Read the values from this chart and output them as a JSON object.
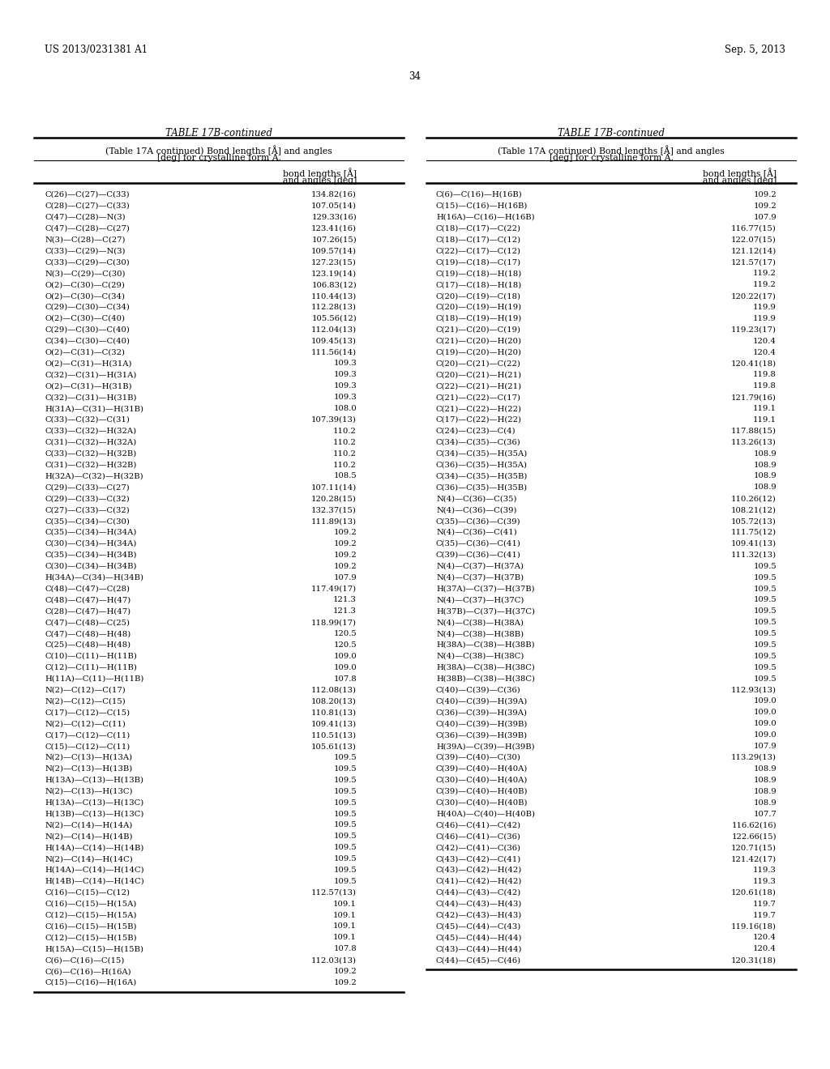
{
  "patent_number": "US 2013/0231381 A1",
  "date": "Sep. 5, 2013",
  "page_number": "34",
  "table_title": "TABLE 17B-continued",
  "left_data": [
    [
      "C(26)—C(27)—C(33)",
      "134.82(16)"
    ],
    [
      "C(28)—C(27)—C(33)",
      "107.05(14)"
    ],
    [
      "C(47)—C(28)—N(3)",
      "129.33(16)"
    ],
    [
      "C(47)—C(28)—C(27)",
      "123.41(16)"
    ],
    [
      "N(3)—C(28)—C(27)",
      "107.26(15)"
    ],
    [
      "C(33)—C(29)—N(3)",
      "109.57(14)"
    ],
    [
      "C(33)—C(29)—C(30)",
      "127.23(15)"
    ],
    [
      "N(3)—C(29)—C(30)",
      "123.19(14)"
    ],
    [
      "O(2)—C(30)—C(29)",
      "106.83(12)"
    ],
    [
      "O(2)—C(30)—C(34)",
      "110.44(13)"
    ],
    [
      "C(29)—C(30)—C(34)",
      "112.28(13)"
    ],
    [
      "O(2)—C(30)—C(40)",
      "105.56(12)"
    ],
    [
      "C(29)—C(30)—C(40)",
      "112.04(13)"
    ],
    [
      "C(34)—C(30)—C(40)",
      "109.45(13)"
    ],
    [
      "O(2)—C(31)—C(32)",
      "111.56(14)"
    ],
    [
      "O(2)—C(31)—H(31A)",
      "109.3"
    ],
    [
      "C(32)—C(31)—H(31A)",
      "109.3"
    ],
    [
      "O(2)—C(31)—H(31B)",
      "109.3"
    ],
    [
      "C(32)—C(31)—H(31B)",
      "109.3"
    ],
    [
      "H(31A)—C(31)—H(31B)",
      "108.0"
    ],
    [
      "C(33)—C(32)—C(31)",
      "107.39(13)"
    ],
    [
      "C(33)—C(32)—H(32A)",
      "110.2"
    ],
    [
      "C(31)—C(32)—H(32A)",
      "110.2"
    ],
    [
      "C(33)—C(32)—H(32B)",
      "110.2"
    ],
    [
      "C(31)—C(32)—H(32B)",
      "110.2"
    ],
    [
      "H(32A)—C(32)—H(32B)",
      "108.5"
    ],
    [
      "C(29)—C(33)—C(27)",
      "107.11(14)"
    ],
    [
      "C(29)—C(33)—C(32)",
      "120.28(15)"
    ],
    [
      "C(27)—C(33)—C(32)",
      "132.37(15)"
    ],
    [
      "C(35)—C(34)—C(30)",
      "111.89(13)"
    ],
    [
      "C(35)—C(34)—H(34A)",
      "109.2"
    ],
    [
      "C(30)—C(34)—H(34A)",
      "109.2"
    ],
    [
      "C(35)—C(34)—H(34B)",
      "109.2"
    ],
    [
      "C(30)—C(34)—H(34B)",
      "109.2"
    ],
    [
      "H(34A)—C(34)—H(34B)",
      "107.9"
    ],
    [
      "C(48)—C(47)—C(28)",
      "117.49(17)"
    ],
    [
      "C(48)—C(47)—H(47)",
      "121.3"
    ],
    [
      "C(28)—C(47)—H(47)",
      "121.3"
    ],
    [
      "C(47)—C(48)—C(25)",
      "118.99(17)"
    ],
    [
      "C(47)—C(48)—H(48)",
      "120.5"
    ],
    [
      "C(25)—C(48)—H(48)",
      "120.5"
    ],
    [
      "C(10)—C(11)—H(11B)",
      "109.0"
    ],
    [
      "C(12)—C(11)—H(11B)",
      "109.0"
    ],
    [
      "H(11A)—C(11)—H(11B)",
      "107.8"
    ],
    [
      "N(2)—C(12)—C(17)",
      "112.08(13)"
    ],
    [
      "N(2)—C(12)—C(15)",
      "108.20(13)"
    ],
    [
      "C(17)—C(12)—C(15)",
      "110.81(13)"
    ],
    [
      "N(2)—C(12)—C(11)",
      "109.41(13)"
    ],
    [
      "C(17)—C(12)—C(11)",
      "110.51(13)"
    ],
    [
      "C(15)—C(12)—C(11)",
      "105.61(13)"
    ],
    [
      "N(2)—C(13)—H(13A)",
      "109.5"
    ],
    [
      "N(2)—C(13)—H(13B)",
      "109.5"
    ],
    [
      "H(13A)—C(13)—H(13B)",
      "109.5"
    ],
    [
      "N(2)—C(13)—H(13C)",
      "109.5"
    ],
    [
      "H(13A)—C(13)—H(13C)",
      "109.5"
    ],
    [
      "H(13B)—C(13)—H(13C)",
      "109.5"
    ],
    [
      "N(2)—C(14)—H(14A)",
      "109.5"
    ],
    [
      "N(2)—C(14)—H(14B)",
      "109.5"
    ],
    [
      "H(14A)—C(14)—H(14B)",
      "109.5"
    ],
    [
      "N(2)—C(14)—H(14C)",
      "109.5"
    ],
    [
      "H(14A)—C(14)—H(14C)",
      "109.5"
    ],
    [
      "H(14B)—C(14)—H(14C)",
      "109.5"
    ],
    [
      "C(16)—C(15)—C(12)",
      "112.57(13)"
    ],
    [
      "C(16)—C(15)—H(15A)",
      "109.1"
    ],
    [
      "C(12)—C(15)—H(15A)",
      "109.1"
    ],
    [
      "C(16)—C(15)—H(15B)",
      "109.1"
    ],
    [
      "C(12)—C(15)—H(15B)",
      "109.1"
    ],
    [
      "H(15A)—C(15)—H(15B)",
      "107.8"
    ],
    [
      "C(6)—C(16)—C(15)",
      "112.03(13)"
    ],
    [
      "C(6)—C(16)—H(16A)",
      "109.2"
    ],
    [
      "C(15)—C(16)—H(16A)",
      "109.2"
    ]
  ],
  "right_data": [
    [
      "C(6)—C(16)—H(16B)",
      "109.2"
    ],
    [
      "C(15)—C(16)—H(16B)",
      "109.2"
    ],
    [
      "H(16A)—C(16)—H(16B)",
      "107.9"
    ],
    [
      "C(18)—C(17)—C(22)",
      "116.77(15)"
    ],
    [
      "C(18)—C(17)—C(12)",
      "122.07(15)"
    ],
    [
      "C(22)—C(17)—C(12)",
      "121.12(14)"
    ],
    [
      "C(19)—C(18)—C(17)",
      "121.57(17)"
    ],
    [
      "C(19)—C(18)—H(18)",
      "119.2"
    ],
    [
      "C(17)—C(18)—H(18)",
      "119.2"
    ],
    [
      "C(20)—C(19)—C(18)",
      "120.22(17)"
    ],
    [
      "C(20)—C(19)—H(19)",
      "119.9"
    ],
    [
      "C(18)—C(19)—H(19)",
      "119.9"
    ],
    [
      "C(21)—C(20)—C(19)",
      "119.23(17)"
    ],
    [
      "C(21)—C(20)—H(20)",
      "120.4"
    ],
    [
      "C(19)—C(20)—H(20)",
      "120.4"
    ],
    [
      "C(20)—C(21)—C(22)",
      "120.41(18)"
    ],
    [
      "C(20)—C(21)—H(21)",
      "119.8"
    ],
    [
      "C(22)—C(21)—H(21)",
      "119.8"
    ],
    [
      "C(21)—C(22)—C(17)",
      "121.79(16)"
    ],
    [
      "C(21)—C(22)—H(22)",
      "119.1"
    ],
    [
      "C(17)—C(22)—H(22)",
      "119.1"
    ],
    [
      "C(24)—C(23)—C(4)",
      "117.88(15)"
    ],
    [
      "C(34)—C(35)—C(36)",
      "113.26(13)"
    ],
    [
      "C(34)—C(35)—H(35A)",
      "108.9"
    ],
    [
      "C(36)—C(35)—H(35A)",
      "108.9"
    ],
    [
      "C(34)—C(35)—H(35B)",
      "108.9"
    ],
    [
      "C(36)—C(35)—H(35B)",
      "108.9"
    ],
    [
      "N(4)—C(36)—C(35)",
      "110.26(12)"
    ],
    [
      "N(4)—C(36)—C(39)",
      "108.21(12)"
    ],
    [
      "C(35)—C(36)—C(39)",
      "105.72(13)"
    ],
    [
      "N(4)—C(36)—C(41)",
      "111.75(12)"
    ],
    [
      "C(35)—C(36)—C(41)",
      "109.41(13)"
    ],
    [
      "C(39)—C(36)—C(41)",
      "111.32(13)"
    ],
    [
      "N(4)—C(37)—H(37A)",
      "109.5"
    ],
    [
      "N(4)—C(37)—H(37B)",
      "109.5"
    ],
    [
      "H(37A)—C(37)—H(37B)",
      "109.5"
    ],
    [
      "N(4)—C(37)—H(37C)",
      "109.5"
    ],
    [
      "H(37B)—C(37)—H(37C)",
      "109.5"
    ],
    [
      "N(4)—C(38)—H(38A)",
      "109.5"
    ],
    [
      "N(4)—C(38)—H(38B)",
      "109.5"
    ],
    [
      "H(38A)—C(38)—H(38B)",
      "109.5"
    ],
    [
      "N(4)—C(38)—H(38C)",
      "109.5"
    ],
    [
      "H(38A)—C(38)—H(38C)",
      "109.5"
    ],
    [
      "H(38B)—C(38)—H(38C)",
      "109.5"
    ],
    [
      "C(40)—C(39)—C(36)",
      "112.93(13)"
    ],
    [
      "C(40)—C(39)—H(39A)",
      "109.0"
    ],
    [
      "C(36)—C(39)—H(39A)",
      "109.0"
    ],
    [
      "C(40)—C(39)—H(39B)",
      "109.0"
    ],
    [
      "C(36)—C(39)—H(39B)",
      "109.0"
    ],
    [
      "H(39A)—C(39)—H(39B)",
      "107.9"
    ],
    [
      "C(39)—C(40)—C(30)",
      "113.29(13)"
    ],
    [
      "C(39)—C(40)—H(40A)",
      "108.9"
    ],
    [
      "C(30)—C(40)—H(40A)",
      "108.9"
    ],
    [
      "C(39)—C(40)—H(40B)",
      "108.9"
    ],
    [
      "C(30)—C(40)—H(40B)",
      "108.9"
    ],
    [
      "H(40A)—C(40)—H(40B)",
      "107.7"
    ],
    [
      "C(46)—C(41)—C(42)",
      "116.62(16)"
    ],
    [
      "C(46)—C(41)—C(36)",
      "122.66(15)"
    ],
    [
      "C(42)—C(41)—C(36)",
      "120.71(15)"
    ],
    [
      "C(43)—C(42)—C(41)",
      "121.42(17)"
    ],
    [
      "C(43)—C(42)—H(42)",
      "119.3"
    ],
    [
      "C(41)—C(42)—H(42)",
      "119.3"
    ],
    [
      "C(44)—C(43)—C(42)",
      "120.61(18)"
    ],
    [
      "C(44)—C(43)—H(43)",
      "119.7"
    ],
    [
      "C(42)—C(43)—H(43)",
      "119.7"
    ],
    [
      "C(45)—C(44)—C(43)",
      "119.16(18)"
    ],
    [
      "C(45)—C(44)—H(44)",
      "120.4"
    ],
    [
      "C(43)—C(44)—H(44)",
      "120.4"
    ],
    [
      "C(44)—C(45)—C(46)",
      "120.31(18)"
    ]
  ]
}
